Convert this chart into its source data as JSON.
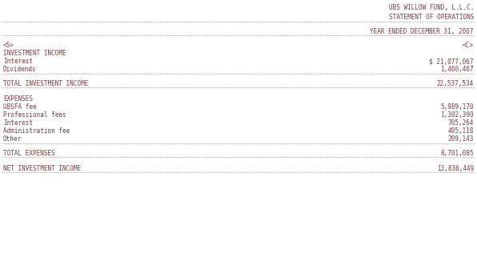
{
  "title_right1": "UBS WILLOW FUND, L.L.C.",
  "title_right2": "STATEMENT OF OPERATIONS",
  "period_label": "YEAR ENDED DECEMBER 31, 2007",
  "col_left": "<S>",
  "col_right": "<C>",
  "section1_header": "INVESTMENT INCOME",
  "income_items": [
    [
      "Interest",
      "$ 21,077,067"
    ],
    [
      "Dividends",
      "1,460,467"
    ]
  ],
  "total_income_label": "TOTAL INVESTMENT INCOME",
  "total_income_value": "22,537,534",
  "section2_header": "EXPENSES",
  "expense_items": [
    [
      "UBSFA fee",
      "5,989,170"
    ],
    [
      "Professional fees",
      "1,302,390"
    ],
    [
      "Interest",
      "705,264"
    ],
    [
      "Administration fee",
      "495,118"
    ],
    [
      "Other",
      "209,143"
    ]
  ],
  "total_expenses_label": "TOTAL EXPENSES",
  "total_expenses_value": "8,701,085",
  "net_income_label": "NET INVESTMENT INCOME",
  "net_income_value": "13,836,449",
  "bg_color": "#ffffff",
  "text_color": "#7B3B3B",
  "dash_color": "#9B7B7B",
  "font_size": 5.5
}
